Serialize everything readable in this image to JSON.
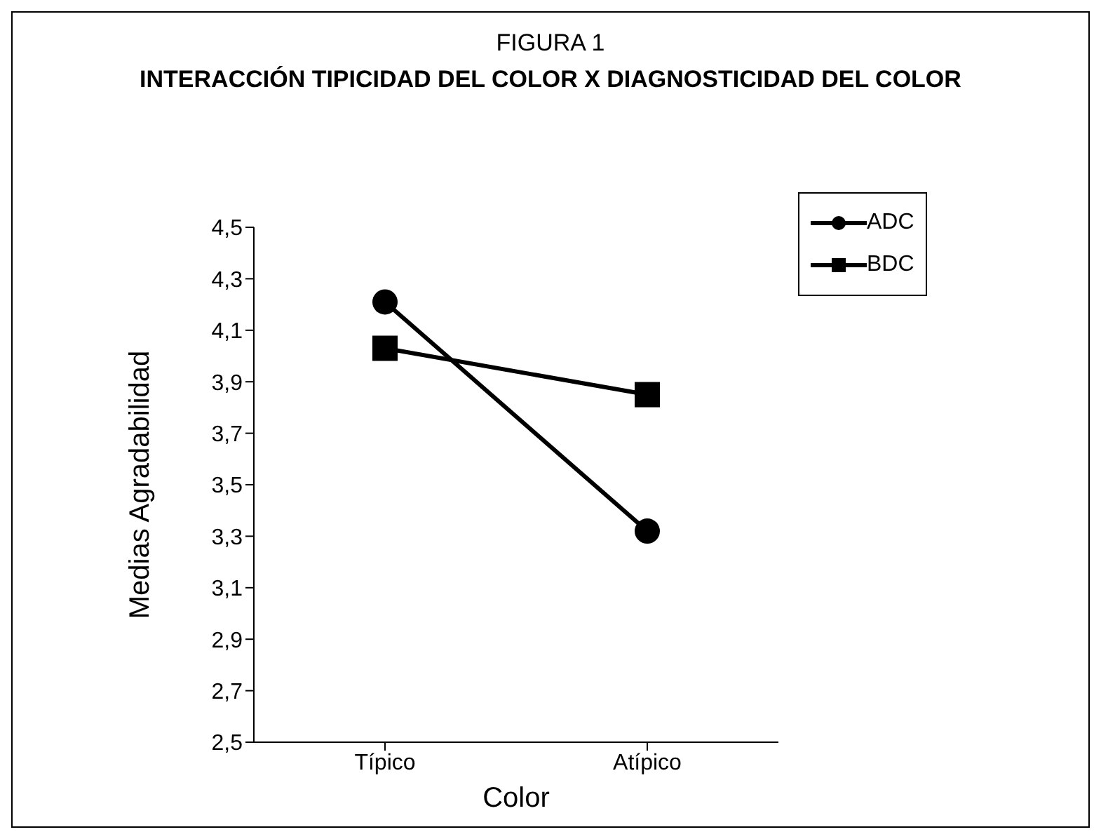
{
  "chart_data": {
    "type": "line",
    "title": "FIGURA 1",
    "subtitle": "INTERACCIÓN TIPICIDAD DEL COLOR X DIAGNOSTICIDAD DEL COLOR",
    "xlabel": "Color",
    "ylabel": "Medias Agradabilidad",
    "categories": [
      "Típico",
      "Atípico"
    ],
    "series": [
      {
        "name": "ADC",
        "color": "#000000",
        "marker": "circle",
        "values": [
          4.21,
          3.32
        ]
      },
      {
        "name": "BDC",
        "color": "#000000",
        "marker": "square",
        "values": [
          4.03,
          3.85
        ]
      }
    ],
    "ylim": [
      2.5,
      4.5
    ],
    "yticks": [
      {
        "value": 2.5,
        "label": "2,5"
      },
      {
        "value": 2.7,
        "label": "2,7"
      },
      {
        "value": 2.9,
        "label": "2,9"
      },
      {
        "value": 3.1,
        "label": "3,1"
      },
      {
        "value": 3.3,
        "label": "3,3"
      },
      {
        "value": 3.5,
        "label": "3,5"
      },
      {
        "value": 3.7,
        "label": "3,7"
      },
      {
        "value": 3.9,
        "label": "3,9"
      },
      {
        "value": 4.1,
        "label": "4,1"
      },
      {
        "value": 4.3,
        "label": "4,3"
      },
      {
        "value": 4.5,
        "label": "4,5"
      }
    ],
    "grid": false,
    "legend": "top right",
    "line_style": "solid"
  }
}
